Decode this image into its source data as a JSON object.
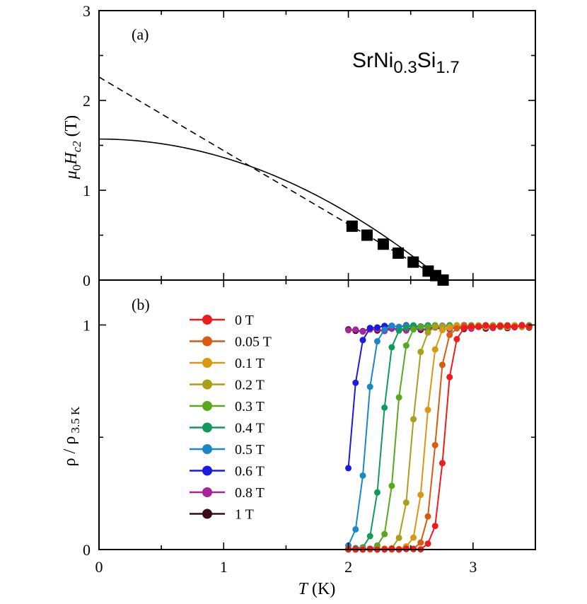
{
  "chart_data": [
    {
      "panel": "(a)",
      "type": "scatter",
      "compound": {
        "base": "SrNi",
        "sub1": "0.3",
        "mid": "Si",
        "sub2": "1.7"
      },
      "xlabel": "T (K)",
      "ylabel": "μ0Hc2 (T)",
      "ylabel_parts": {
        "mu": "μ",
        "mu_sub": "0",
        "H": "H",
        "H_sub": "c2",
        "unit": " (T)"
      },
      "xlim": [
        0,
        3.5
      ],
      "ylim": [
        0,
        3
      ],
      "y_ticks": [
        "0",
        "1",
        "2",
        "3"
      ],
      "series": [
        {
          "name": "Hc2 data",
          "marker": "square",
          "color": "#000000",
          "x": [
            2.03,
            2.15,
            2.28,
            2.4,
            2.52,
            2.64,
            2.7,
            2.76
          ],
          "y": [
            0.6,
            0.5,
            0.4,
            0.3,
            0.2,
            0.1,
            0.05,
            0.0
          ]
        }
      ],
      "fits": [
        {
          "name": "linear extrapolation",
          "style": "dashed",
          "x": [
            0,
            2.76
          ],
          "y": [
            2.26,
            0
          ]
        },
        {
          "name": "WHH fit",
          "style": "solid",
          "Tc": 2.76,
          "H0": 1.57
        }
      ]
    },
    {
      "panel": "(b)",
      "type": "line",
      "xlabel": "T (K)",
      "xlabel_parts": {
        "T": "T",
        "unit": " (K)"
      },
      "ylabel": "ρ / ρ 3.5 K",
      "ylabel_parts": {
        "main": "ρ / ρ",
        "sub": " 3.5 K"
      },
      "xlim": [
        0,
        3.5
      ],
      "ylim": [
        0,
        1.25
      ],
      "x_ticks": [
        "0",
        "1",
        "2",
        "3"
      ],
      "y_ticks": [
        "0",
        "1"
      ],
      "series": [
        {
          "name": "0 T",
          "color": "#ee1c1c",
          "Tc": 2.77,
          "tmin": 2.0
        },
        {
          "name": "0.05 T",
          "color": "#d95a10",
          "Tc": 2.7,
          "tmin": 2.0
        },
        {
          "name": "0.1 T",
          "color": "#d99812",
          "Tc": 2.62,
          "tmin": 2.0
        },
        {
          "name": "0.2 T",
          "color": "#a8a018",
          "Tc": 2.51,
          "tmin": 2.0
        },
        {
          "name": "0.3 T",
          "color": "#5aa81c",
          "Tc": 2.38,
          "tmin": 2.0
        },
        {
          "name": "0.4 T",
          "color": "#129a5a",
          "Tc": 2.27,
          "tmin": 2.0
        },
        {
          "name": "0.5 T",
          "color": "#1a88c8",
          "Tc": 2.14,
          "tmin": 2.0
        },
        {
          "name": "0.6 T",
          "color": "#1a1ae0",
          "Tc": 2.02,
          "tmin": 2.0
        },
        {
          "name": "0.8 T",
          "color": "#a8249a",
          "Tc": 0,
          "tmin": 2.0
        },
        {
          "name": "1 T",
          "color": "#3a0a1a",
          "Tc": 0,
          "tmin": 2.0
        }
      ],
      "legend_location": "upper-left"
    }
  ]
}
